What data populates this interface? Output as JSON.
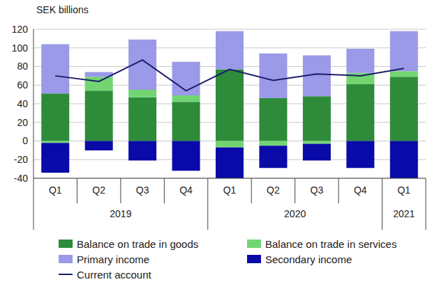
{
  "chart_data": {
    "type": "bar",
    "y_label": "SEK billions",
    "categories": [
      "Q1",
      "Q2",
      "Q3",
      "Q4",
      "Q1",
      "Q2",
      "Q3",
      "Q4",
      "Q1"
    ],
    "groups": [
      {
        "label": "2019",
        "span": 4
      },
      {
        "label": "2020",
        "span": 4
      },
      {
        "label": "2021",
        "span": 1
      }
    ],
    "series": [
      {
        "name": "Balance on trade in goods",
        "color": "#2e8b3a",
        "values": [
          51,
          54,
          47,
          42,
          77,
          46,
          48,
          61,
          69
        ]
      },
      {
        "name": "Balance on trade in services",
        "color": "#72d572",
        "values": [
          -2,
          15,
          8,
          7,
          -7,
          -5,
          -3,
          12,
          6
        ]
      },
      {
        "name": "Primary income",
        "color": "#9a9ae8",
        "values": [
          53,
          5,
          54,
          36,
          41,
          48,
          44,
          26,
          43
        ]
      },
      {
        "name": "Secondary income",
        "color": "#0a0aa8",
        "values": [
          -32,
          -10,
          -21,
          -32,
          -33,
          -24,
          -18,
          -29,
          -40
        ]
      },
      {
        "name": "Current account",
        "color": "#1c1c6b",
        "type": "line",
        "values": [
          70,
          64,
          87,
          54,
          77,
          65,
          72,
          70,
          78
        ]
      }
    ],
    "ylim": [
      -40,
      120
    ],
    "yticks": [
      -40,
      -20,
      0,
      20,
      40,
      60,
      80,
      100,
      120
    ],
    "grid": true,
    "stacked": true,
    "legend": "bottom"
  }
}
